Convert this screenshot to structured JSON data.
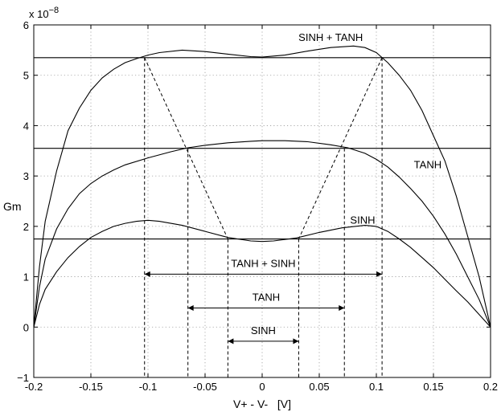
{
  "chart_data": {
    "type": "line",
    "title": "",
    "xlabel": "V+ - V-   [V]",
    "ylabel": "Gm",
    "y_exponent_label": "x 10",
    "y_exponent_power": "−8",
    "xlim": [
      -0.2,
      0.2
    ],
    "ylim": [
      -1,
      6
    ],
    "grid": true,
    "x_ticks": [
      {
        "value": -0.2,
        "label": "-0.2"
      },
      {
        "value": -0.15,
        "label": "-0.15"
      },
      {
        "value": -0.1,
        "label": "-0.1"
      },
      {
        "value": -0.05,
        "label": "-0.05"
      },
      {
        "value": 0,
        "label": "0"
      },
      {
        "value": 0.05,
        "label": "0.05"
      },
      {
        "value": 0.1,
        "label": "0.1"
      },
      {
        "value": 0.15,
        "label": "0.15"
      },
      {
        "value": 0.2,
        "label": "0.2"
      }
    ],
    "y_ticks": [
      {
        "value": -1,
        "label": "−1"
      },
      {
        "value": 0,
        "label": "0"
      },
      {
        "value": 1,
        "label": "1"
      },
      {
        "value": 2,
        "label": "2"
      },
      {
        "value": 3,
        "label": "3"
      },
      {
        "value": 4,
        "label": "4"
      },
      {
        "value": 5,
        "label": "5"
      },
      {
        "value": 6,
        "label": "6"
      }
    ],
    "series": [
      {
        "name": "SINH + TANH",
        "x": [
          -0.2,
          -0.195,
          -0.19,
          -0.18,
          -0.17,
          -0.16,
          -0.15,
          -0.14,
          -0.13,
          -0.12,
          -0.11,
          -0.1,
          -0.09,
          -0.07,
          -0.05,
          -0.03,
          -0.01,
          0.0,
          0.02,
          0.04,
          0.06,
          0.08,
          0.09,
          0.1,
          0.11,
          0.12,
          0.13,
          0.14,
          0.15,
          0.16,
          0.17,
          0.18,
          0.19,
          0.2
        ],
        "y": [
          0.0,
          1.2,
          2.1,
          3.1,
          3.9,
          4.35,
          4.7,
          4.95,
          5.12,
          5.25,
          5.33,
          5.4,
          5.45,
          5.5,
          5.47,
          5.42,
          5.37,
          5.36,
          5.4,
          5.48,
          5.55,
          5.58,
          5.55,
          5.45,
          5.25,
          5.0,
          4.7,
          4.3,
          3.8,
          3.3,
          2.6,
          1.8,
          1.0,
          0.0
        ]
      },
      {
        "name": "TANH",
        "x": [
          -0.2,
          -0.195,
          -0.19,
          -0.18,
          -0.17,
          -0.16,
          -0.15,
          -0.14,
          -0.13,
          -0.12,
          -0.1,
          -0.08,
          -0.065,
          -0.05,
          -0.03,
          -0.01,
          0.0,
          0.02,
          0.04,
          0.06,
          0.075,
          0.09,
          0.1,
          0.11,
          0.12,
          0.13,
          0.14,
          0.15,
          0.16,
          0.17,
          0.18,
          0.19,
          0.2
        ],
        "y": [
          0.0,
          0.8,
          1.35,
          1.95,
          2.35,
          2.65,
          2.85,
          3.0,
          3.12,
          3.22,
          3.36,
          3.48,
          3.56,
          3.61,
          3.66,
          3.69,
          3.7,
          3.7,
          3.68,
          3.62,
          3.56,
          3.45,
          3.33,
          3.18,
          2.98,
          2.75,
          2.5,
          2.2,
          1.85,
          1.45,
          1.0,
          0.55,
          0.0
        ]
      },
      {
        "name": "SINH",
        "x": [
          -0.2,
          -0.195,
          -0.19,
          -0.18,
          -0.17,
          -0.16,
          -0.15,
          -0.14,
          -0.13,
          -0.12,
          -0.11,
          -0.1,
          -0.09,
          -0.07,
          -0.05,
          -0.03,
          -0.01,
          0.0,
          0.01,
          0.03,
          0.05,
          0.07,
          0.09,
          0.1,
          0.11,
          0.12,
          0.13,
          0.14,
          0.15,
          0.16,
          0.17,
          0.18,
          0.19,
          0.2
        ],
        "y": [
          0.0,
          0.45,
          0.75,
          1.1,
          1.38,
          1.6,
          1.78,
          1.9,
          2.0,
          2.06,
          2.1,
          2.12,
          2.1,
          2.02,
          1.9,
          1.78,
          1.71,
          1.7,
          1.71,
          1.77,
          1.88,
          1.97,
          2.02,
          2.0,
          1.9,
          1.75,
          1.58,
          1.38,
          1.18,
          0.95,
          0.72,
          0.5,
          0.25,
          0.0
        ]
      }
    ],
    "horizontal_lines": [
      5.35,
      3.55,
      1.75
    ],
    "vertical_markers": [
      {
        "x": -0.103,
        "y": 5.35
      },
      {
        "x": 0.105,
        "y": 5.35
      },
      {
        "x": -0.065,
        "y": 3.55
      },
      {
        "x": 0.072,
        "y": 3.55
      },
      {
        "x": -0.03,
        "y": 1.75
      },
      {
        "x": 0.032,
        "y": 1.75
      }
    ],
    "diagonals": [
      {
        "x1": -0.103,
        "y1": 5.35,
        "x2": -0.03,
        "y2": 1.75
      },
      {
        "x1": 0.105,
        "y1": 5.35,
        "x2": 0.032,
        "y2": 1.75
      }
    ],
    "ranges": [
      {
        "label": "TANH + SINH",
        "x1": -0.103,
        "x2": 0.105,
        "y": 1.05
      },
      {
        "label": "TANH",
        "x1": -0.065,
        "x2": 0.072,
        "y": 0.38
      },
      {
        "label": "SINH",
        "x1": -0.03,
        "x2": 0.032,
        "y": -0.28
      }
    ],
    "curve_labels": [
      {
        "text": "SINH + TANH",
        "x": 0.06,
        "y": 5.68
      },
      {
        "text": "TANH",
        "x": 0.145,
        "y": 3.15
      },
      {
        "text": "SINH",
        "x": 0.088,
        "y": 2.05
      }
    ]
  }
}
